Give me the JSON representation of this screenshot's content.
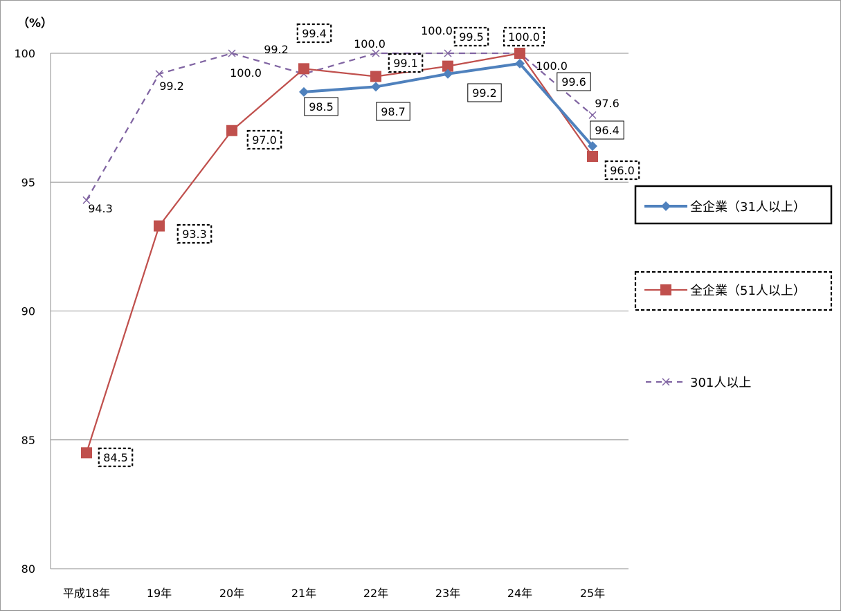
{
  "chart_data": {
    "type": "line",
    "y_unit_label": "（%）",
    "categories": [
      "平成18年",
      "19年",
      "20年",
      "21年",
      "22年",
      "23年",
      "24年",
      "25年"
    ],
    "ylim": [
      80,
      100
    ],
    "yticks": [
      80,
      85,
      90,
      95,
      100
    ],
    "grid": true,
    "legend_position": "right",
    "series": [
      {
        "name": "全企業（31人以上）",
        "color": "#4f81bd",
        "marker": "diamond",
        "line_style": "solid",
        "values": [
          null,
          null,
          null,
          98.5,
          98.7,
          99.2,
          99.6,
          96.4
        ],
        "labels": [
          "",
          "",
          "",
          "98.5",
          "98.7",
          "99.2",
          "",
          "96.4"
        ],
        "label_box": "solid"
      },
      {
        "name": "全企業（51人以上）",
        "color": "#c0504d",
        "marker": "square",
        "line_style": "solid",
        "values": [
          84.5,
          93.3,
          97.0,
          99.4,
          99.1,
          99.5,
          100.0,
          96.0
        ],
        "labels": [
          "84.5",
          "93.3",
          "97.0",
          "99.4",
          "99.1",
          "99.5",
          "100.0",
          "96.0"
        ],
        "label_box": "dashed"
      },
      {
        "name": "301人以上",
        "color": "#8064a2",
        "marker": "x",
        "line_style": "dashed",
        "values": [
          94.3,
          99.2,
          100.0,
          99.2,
          100.0,
          100.0,
          100.0,
          97.6
        ],
        "labels": [
          "94.3",
          "99.2",
          "100.0",
          "99.2",
          "100.0",
          "100.0",
          "100.0",
          "97.6"
        ],
        "label_box": "none"
      }
    ],
    "extra_labels": [
      {
        "text": "99.6",
        "category_index": 7,
        "box": "solid"
      }
    ]
  }
}
